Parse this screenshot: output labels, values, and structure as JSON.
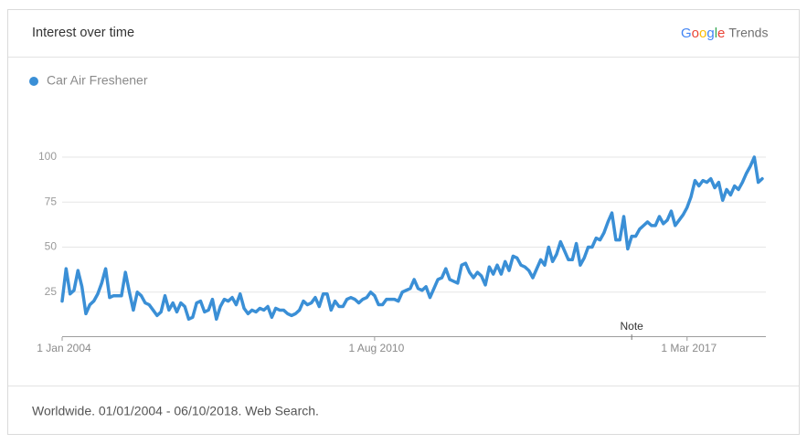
{
  "header": {
    "title": "Interest over time",
    "logo": {
      "brand": "Google",
      "product": "Trends"
    }
  },
  "footer": {
    "text": "Worldwide. 01/01/2004 - 06/10/2018. Web Search."
  },
  "chart_data": {
    "type": "line",
    "x": [
      "2004-01",
      "2004-02",
      "2004-03",
      "2004-04",
      "2004-05",
      "2004-06",
      "2004-07",
      "2004-08",
      "2004-09",
      "2004-10",
      "2004-11",
      "2004-12",
      "2005-01",
      "2005-02",
      "2005-03",
      "2005-04",
      "2005-05",
      "2005-06",
      "2005-07",
      "2005-08",
      "2005-09",
      "2005-10",
      "2005-11",
      "2005-12",
      "2006-01",
      "2006-02",
      "2006-03",
      "2006-04",
      "2006-05",
      "2006-06",
      "2006-07",
      "2006-08",
      "2006-09",
      "2006-10",
      "2006-11",
      "2006-12",
      "2007-01",
      "2007-02",
      "2007-03",
      "2007-04",
      "2007-05",
      "2007-06",
      "2007-07",
      "2007-08",
      "2007-09",
      "2007-10",
      "2007-11",
      "2007-12",
      "2008-01",
      "2008-02",
      "2008-03",
      "2008-04",
      "2008-05",
      "2008-06",
      "2008-07",
      "2008-08",
      "2008-09",
      "2008-10",
      "2008-11",
      "2008-12",
      "2009-01",
      "2009-02",
      "2009-03",
      "2009-04",
      "2009-05",
      "2009-06",
      "2009-07",
      "2009-08",
      "2009-09",
      "2009-10",
      "2009-11",
      "2009-12",
      "2010-01",
      "2010-02",
      "2010-03",
      "2010-04",
      "2010-05",
      "2010-06",
      "2010-07",
      "2010-08",
      "2010-09",
      "2010-10",
      "2010-11",
      "2010-12",
      "2011-01",
      "2011-02",
      "2011-03",
      "2011-04",
      "2011-05",
      "2011-06",
      "2011-07",
      "2011-08",
      "2011-09",
      "2011-10",
      "2011-11",
      "2011-12",
      "2012-01",
      "2012-02",
      "2012-03",
      "2012-04",
      "2012-05",
      "2012-06",
      "2012-07",
      "2012-08",
      "2012-09",
      "2012-10",
      "2012-11",
      "2012-12",
      "2013-01",
      "2013-02",
      "2013-03",
      "2013-04",
      "2013-05",
      "2013-06",
      "2013-07",
      "2013-08",
      "2013-09",
      "2013-10",
      "2013-11",
      "2013-12",
      "2014-01",
      "2014-02",
      "2014-03",
      "2014-04",
      "2014-05",
      "2014-06",
      "2014-07",
      "2014-08",
      "2014-09",
      "2014-10",
      "2014-11",
      "2014-12",
      "2015-01",
      "2015-02",
      "2015-03",
      "2015-04",
      "2015-05",
      "2015-06",
      "2015-07",
      "2015-08",
      "2015-09",
      "2015-10",
      "2015-11",
      "2015-12",
      "2016-01",
      "2016-02",
      "2016-03",
      "2016-04",
      "2016-05",
      "2016-06",
      "2016-07",
      "2016-08",
      "2016-09",
      "2016-10",
      "2016-11",
      "2016-12",
      "2017-01",
      "2017-02",
      "2017-03",
      "2017-04",
      "2017-05",
      "2017-06",
      "2017-07",
      "2017-08",
      "2017-09",
      "2017-10",
      "2017-11",
      "2017-12",
      "2018-01",
      "2018-02",
      "2018-03",
      "2018-04",
      "2018-05",
      "2018-06",
      "2018-07",
      "2018-08",
      "2018-09",
      "2018-10"
    ],
    "series": [
      {
        "name": "Car Air Freshener",
        "color": "#3a8fd6",
        "values": [
          20,
          38,
          24,
          26,
          37,
          28,
          13,
          18,
          20,
          24,
          30,
          38,
          22,
          23,
          23,
          23,
          36,
          25,
          15,
          25,
          23,
          19,
          18,
          15,
          12,
          14,
          23,
          15,
          19,
          14,
          19,
          17,
          10,
          11,
          19,
          20,
          14,
          15,
          21,
          10,
          17,
          21,
          20,
          22,
          18,
          24,
          16,
          13,
          15,
          14,
          16,
          15,
          17,
          11,
          16,
          15,
          15,
          13,
          12,
          13,
          15,
          20,
          18,
          19,
          22,
          17,
          24,
          24,
          15,
          20,
          17,
          17,
          21,
          22,
          21,
          19,
          21,
          22,
          25,
          23,
          18,
          18,
          21,
          21,
          21,
          20,
          25,
          26,
          27,
          32,
          27,
          26,
          28,
          22,
          27,
          32,
          33,
          38,
          32,
          31,
          30,
          40,
          41,
          36,
          33,
          36,
          34,
          29,
          39,
          35,
          40,
          35,
          42,
          37,
          45,
          44,
          40,
          39,
          37,
          33,
          38,
          43,
          40,
          50,
          42,
          46,
          53,
          48,
          43,
          43,
          52,
          40,
          44,
          50,
          50,
          55,
          54,
          58,
          64,
          69,
          54,
          54,
          67,
          49,
          56,
          56,
          60,
          62,
          64,
          62,
          62,
          67,
          63,
          65,
          70,
          62,
          65,
          68,
          72,
          78,
          87,
          84,
          87,
          86,
          88,
          83,
          86,
          76,
          82,
          79,
          84,
          82,
          86,
          91,
          95,
          100,
          86,
          88
        ]
      }
    ],
    "xlim": [
      "2004-01",
      "2018-10"
    ],
    "xticks": [
      {
        "value": "2004-01",
        "label": "1 Jan 2004"
      },
      {
        "value": "2010-08",
        "label": "1 Aug 2010"
      },
      {
        "value": "2017-03",
        "label": "1 Mar 2017"
      }
    ],
    "ylim": [
      0,
      100
    ],
    "yticks": [
      25,
      50,
      75,
      100
    ],
    "grid": true,
    "legend": "top-left",
    "annotations": [
      {
        "text": "Note",
        "x": "2016-01"
      }
    ]
  }
}
